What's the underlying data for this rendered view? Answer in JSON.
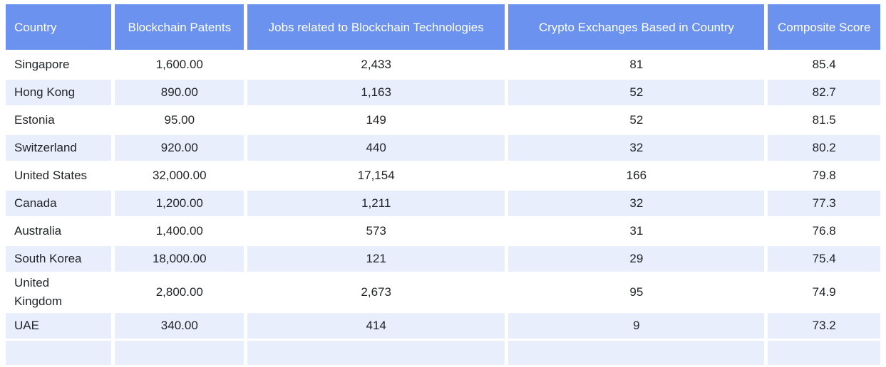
{
  "table": {
    "columns": [
      {
        "label": "Country"
      },
      {
        "label": "Blockchain Patents"
      },
      {
        "label": "Jobs related to Blockchain Technologies"
      },
      {
        "label": "Crypto Exchanges Based in Country"
      },
      {
        "label": "Composite Score"
      }
    ],
    "rows": [
      {
        "country": "Singapore",
        "patents": "1,600.00",
        "jobs": "2,433",
        "exchanges": "81",
        "score": "85.4"
      },
      {
        "country": "Hong Kong",
        "patents": "890.00",
        "jobs": "1,163",
        "exchanges": "52",
        "score": "82.7"
      },
      {
        "country": "Estonia",
        "patents": "95.00",
        "jobs": "149",
        "exchanges": "52",
        "score": "81.5"
      },
      {
        "country": "Switzerland",
        "patents": "920.00",
        "jobs": "440",
        "exchanges": "32",
        "score": "80.2"
      },
      {
        "country": "United States",
        "patents": "32,000.00",
        "jobs": "17,154",
        "exchanges": "166",
        "score": "79.8"
      },
      {
        "country": "Canada",
        "patents": "1,200.00",
        "jobs": "1,211",
        "exchanges": "32",
        "score": "77.3"
      },
      {
        "country": "Australia",
        "patents": "1,400.00",
        "jobs": "573",
        "exchanges": "31",
        "score": "76.8"
      },
      {
        "country": "South Korea",
        "patents": "18,000.00",
        "jobs": "121",
        "exchanges": "29",
        "score": "75.4"
      },
      {
        "country": "United Kingdom",
        "patents": "2,800.00",
        "jobs": "2,673",
        "exchanges": "95",
        "score": "74.9"
      },
      {
        "country": "UAE",
        "patents": "340.00",
        "jobs": "414",
        "exchanges": "9",
        "score": "73.2"
      }
    ],
    "colors": {
      "header_bg": "#6B92EE",
      "header_text": "#FFFFFF",
      "stripe_bg": "#E8EEFB",
      "row_bg": "#FFFFFF",
      "cell_text": "#1F2328"
    }
  },
  "chart_data": {
    "type": "table",
    "title": "",
    "columns": [
      "Country",
      "Blockchain Patents",
      "Jobs related to Blockchain Technologies",
      "Crypto Exchanges Based in Country",
      "Composite Score"
    ],
    "records": [
      {
        "country": "Singapore",
        "blockchain_patents": 1600,
        "jobs_related_to_blockchain_technologies": 2433,
        "crypto_exchanges_based_in_country": 81,
        "composite_score": 85.4
      },
      {
        "country": "Hong Kong",
        "blockchain_patents": 890,
        "jobs_related_to_blockchain_technologies": 1163,
        "crypto_exchanges_based_in_country": 52,
        "composite_score": 82.7
      },
      {
        "country": "Estonia",
        "blockchain_patents": 95,
        "jobs_related_to_blockchain_technologies": 149,
        "crypto_exchanges_based_in_country": 52,
        "composite_score": 81.5
      },
      {
        "country": "Switzerland",
        "blockchain_patents": 920,
        "jobs_related_to_blockchain_technologies": 440,
        "crypto_exchanges_based_in_country": 32,
        "composite_score": 80.2
      },
      {
        "country": "United States",
        "blockchain_patents": 32000,
        "jobs_related_to_blockchain_technologies": 17154,
        "crypto_exchanges_based_in_country": 166,
        "composite_score": 79.8
      },
      {
        "country": "Canada",
        "blockchain_patents": 1200,
        "jobs_related_to_blockchain_technologies": 1211,
        "crypto_exchanges_based_in_country": 32,
        "composite_score": 77.3
      },
      {
        "country": "Australia",
        "blockchain_patents": 1400,
        "jobs_related_to_blockchain_technologies": 573,
        "crypto_exchanges_based_in_country": 31,
        "composite_score": 76.8
      },
      {
        "country": "South Korea",
        "blockchain_patents": 18000,
        "jobs_related_to_blockchain_technologies": 121,
        "crypto_exchanges_based_in_country": 29,
        "composite_score": 75.4
      },
      {
        "country": "United Kingdom",
        "blockchain_patents": 2800,
        "jobs_related_to_blockchain_technologies": 2673,
        "crypto_exchanges_based_in_country": 95,
        "composite_score": 74.9
      },
      {
        "country": "UAE",
        "blockchain_patents": 340,
        "jobs_related_to_blockchain_technologies": 414,
        "crypto_exchanges_based_in_country": 9,
        "composite_score": 73.2
      }
    ]
  }
}
